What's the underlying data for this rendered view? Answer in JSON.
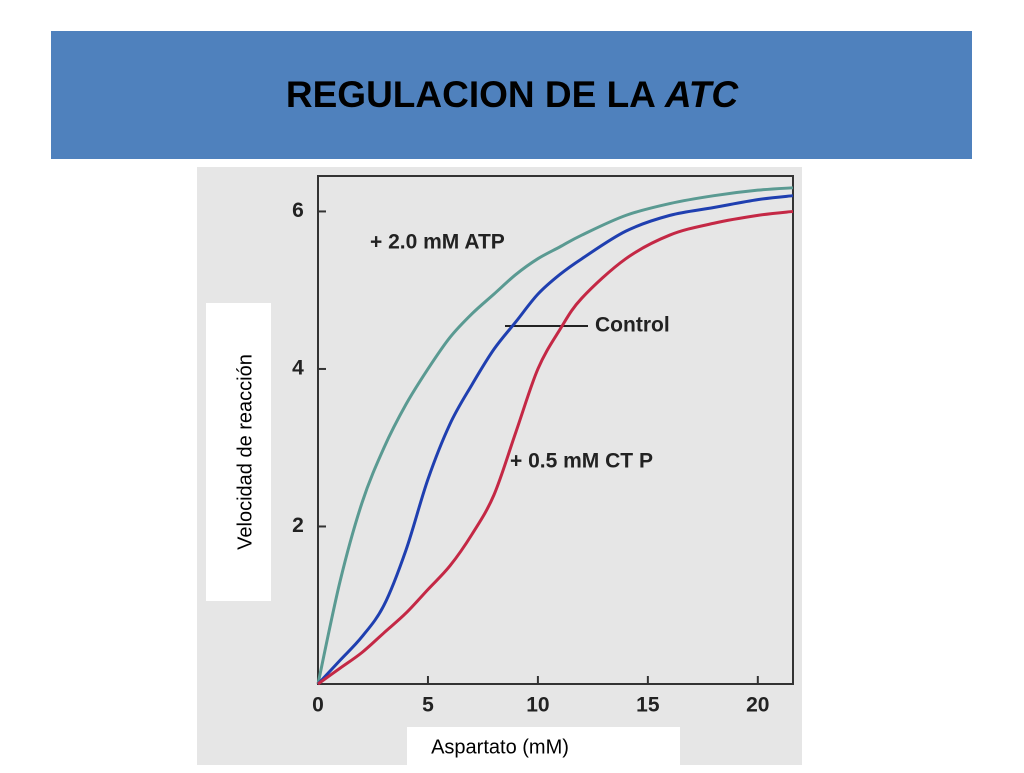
{
  "chart_data": {
    "type": "line",
    "title": [
      "REGULACION DE LA",
      "ATC"
    ],
    "x_label": "Aspartato (mM)",
    "y_label": "Velocidad de reacción",
    "x": [
      0,
      1,
      2,
      3,
      4,
      5,
      6,
      7,
      8,
      9,
      10,
      11,
      12,
      14,
      16,
      18,
      20,
      21.6
    ],
    "series": [
      {
        "name": "+ 2.0 mM ATP",
        "color": "#5a9a92",
        "values": [
          0,
          1.3,
          2.3,
          3.0,
          3.55,
          4.0,
          4.4,
          4.7,
          4.95,
          5.2,
          5.4,
          5.55,
          5.7,
          5.95,
          6.1,
          6.2,
          6.27,
          6.3
        ]
      },
      {
        "name": "Control",
        "color": "#1f3fb0",
        "values": [
          0,
          0.3,
          0.6,
          1.0,
          1.7,
          2.6,
          3.3,
          3.8,
          4.25,
          4.6,
          4.95,
          5.2,
          5.4,
          5.75,
          5.95,
          6.05,
          6.15,
          6.2
        ]
      },
      {
        "name": "+ 0.5 mM CT P",
        "color": "#c42845",
        "values": [
          0,
          0.2,
          0.4,
          0.65,
          0.9,
          1.2,
          1.5,
          1.9,
          2.4,
          3.2,
          4.0,
          4.5,
          4.9,
          5.4,
          5.7,
          5.85,
          5.95,
          6.0
        ]
      }
    ],
    "xlim": [
      0,
      21.6
    ],
    "ylim": [
      0,
      6.45
    ],
    "xticks": [
      0,
      5,
      10,
      15,
      20
    ],
    "yticks": [
      2,
      4,
      6
    ]
  }
}
